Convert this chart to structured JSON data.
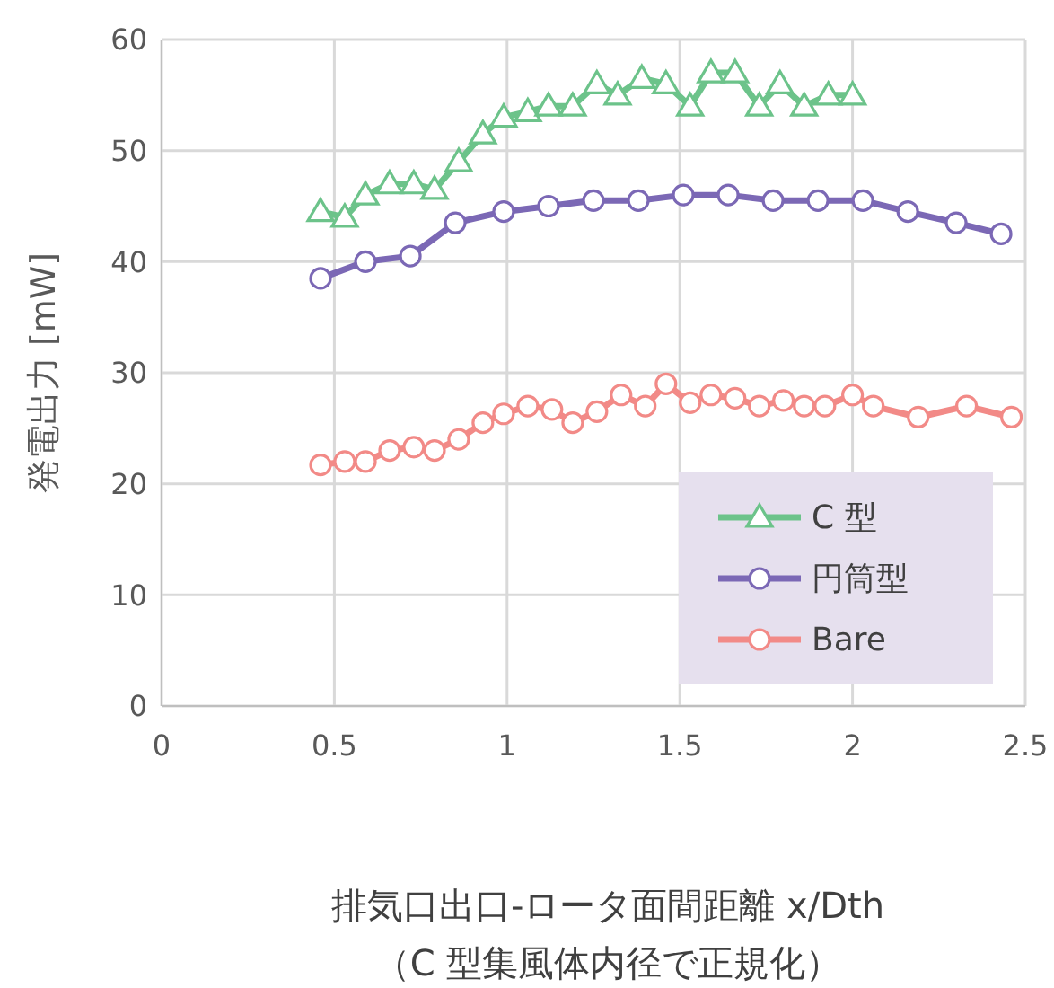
{
  "chart_data": {
    "type": "line",
    "xlabel": "排気口出口-ロータ面間距離 x/Dth\n（C 型集風体内径で正規化）",
    "ylabel": "発電出力 [mW]",
    "xlim": [
      0,
      2.5
    ],
    "xticks": [
      0,
      0.5,
      1,
      1.5,
      2,
      2.5
    ],
    "ylim": [
      0,
      60
    ],
    "yticks": [
      0,
      10,
      20,
      30,
      40,
      50,
      60
    ],
    "grid": true,
    "legend": "bottom right",
    "line_style": "solid",
    "series": [
      {
        "name": "C 型",
        "color": "#6cc38a",
        "marker": "triangle",
        "x": [
          0.46,
          0.53,
          0.59,
          0.66,
          0.73,
          0.79,
          0.86,
          0.93,
          0.99,
          1.06,
          1.12,
          1.19,
          1.26,
          1.32,
          1.39,
          1.46,
          1.53,
          1.59,
          1.66,
          1.73,
          1.79,
          1.86,
          1.93,
          2.0
        ],
        "values": [
          44.5,
          44,
          46,
          47,
          47,
          46.5,
          49,
          51.5,
          53,
          53.5,
          54,
          54,
          56,
          55,
          56.5,
          56,
          54,
          57,
          57,
          54,
          56,
          54,
          55,
          55
        ]
      },
      {
        "name": "円筒型",
        "color": "#7b68b5",
        "marker": "circle",
        "x": [
          0.46,
          0.59,
          0.72,
          0.85,
          0.99,
          1.12,
          1.25,
          1.38,
          1.51,
          1.64,
          1.77,
          1.9,
          2.03,
          2.16,
          2.3,
          2.43
        ],
        "values": [
          38.5,
          40,
          40.5,
          43.5,
          44.5,
          45,
          45.5,
          45.5,
          46,
          46,
          45.5,
          45.5,
          45.5,
          44.5,
          43.5,
          42.5
        ]
      },
      {
        "name": "Bare",
        "color": "#f28a87",
        "marker": "circle",
        "x": [
          0.46,
          0.53,
          0.59,
          0.66,
          0.73,
          0.79,
          0.86,
          0.93,
          0.99,
          1.06,
          1.13,
          1.19,
          1.26,
          1.33,
          1.4,
          1.46,
          1.53,
          1.59,
          1.66,
          1.73,
          1.8,
          1.86,
          1.92,
          2.0,
          2.06,
          2.19,
          2.33,
          2.46
        ],
        "values": [
          21.7,
          22,
          22,
          23,
          23.3,
          23,
          24,
          25.5,
          26.3,
          27,
          26.7,
          25.5,
          26.5,
          28,
          27,
          29,
          27.3,
          28,
          27.7,
          27,
          27.5,
          27,
          27,
          28,
          27,
          26,
          27,
          26
        ]
      }
    ]
  }
}
